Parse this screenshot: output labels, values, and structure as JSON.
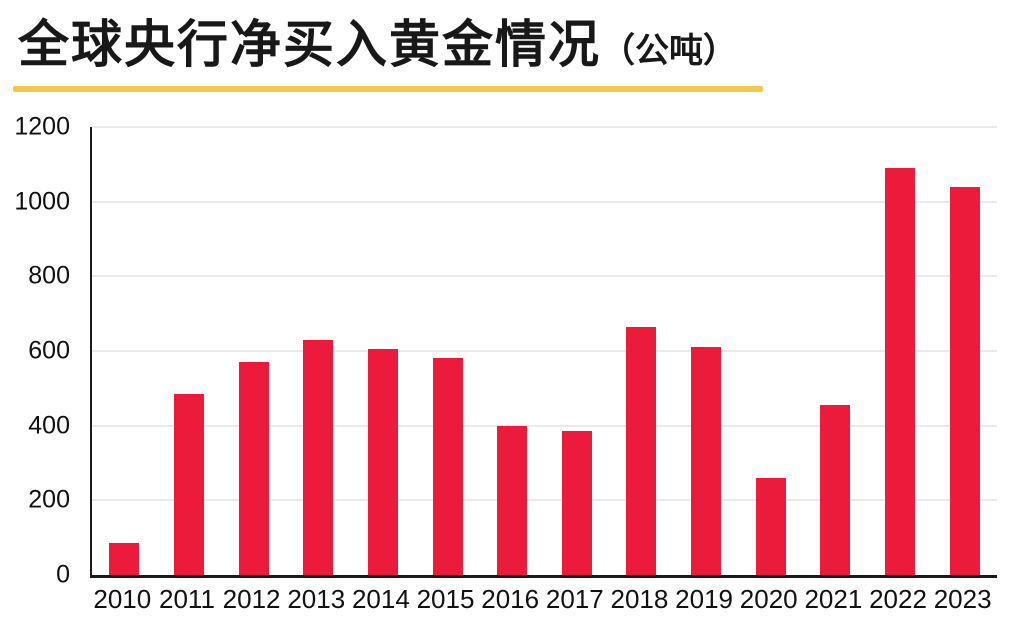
{
  "page": {
    "title": "全球央行净买入黄金情况",
    "title_unit": "（公吨）"
  },
  "colors": {
    "bar": "#EC1B3B",
    "underline": "#F4C84E",
    "axis": "#1a1a1a",
    "gridline": "#d6d6d6",
    "text": "#111111"
  },
  "chart_data": {
    "type": "bar",
    "title": "全球央行净买入黄金情况（公吨）",
    "xlabel": "",
    "ylabel": "",
    "categories": [
      "2010",
      "2011",
      "2012",
      "2013",
      "2014",
      "2015",
      "2016",
      "2017",
      "2018",
      "2019",
      "2020",
      "2021",
      "2022",
      "2023"
    ],
    "values": [
      85,
      485,
      570,
      630,
      605,
      580,
      400,
      385,
      665,
      610,
      260,
      455,
      1090,
      1040
    ],
    "ylim": [
      0,
      1200
    ],
    "yticks": [
      0,
      200,
      400,
      600,
      800,
      1000,
      1200
    ],
    "grid": true,
    "legend": "none",
    "bar_color": "#EC1B3B"
  }
}
